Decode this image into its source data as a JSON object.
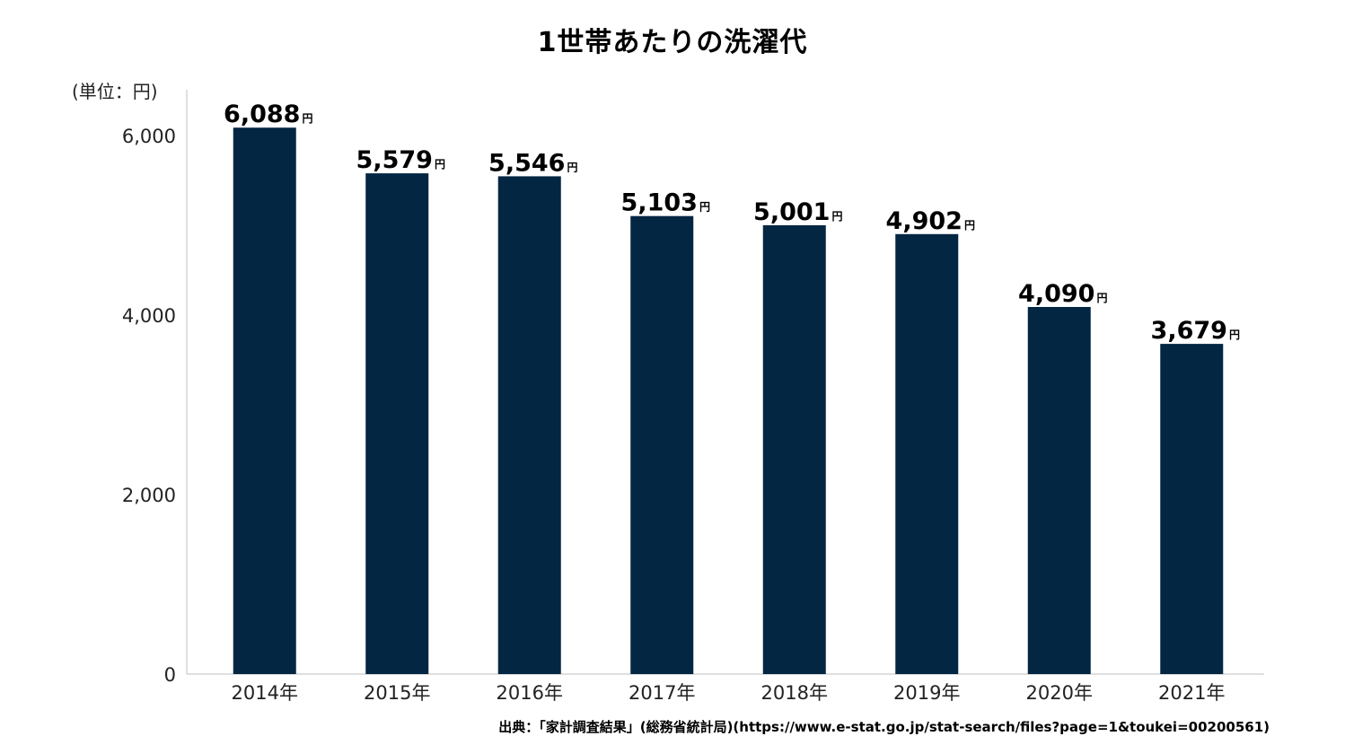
{
  "title": "1世帯あたりの洗濯代",
  "unit_label": "(単位：円)",
  "source": "出典：「家計調査結果」(総務省統計局)(https://www.e-stat.go.jp/stat-search/files?page=1&toukei=00200561)",
  "chart_data": {
    "type": "bar",
    "title": "1世帯あたりの洗濯代",
    "xlabel": "",
    "ylabel": "(単位：円)",
    "categories": [
      "2014年",
      "2015年",
      "2016年",
      "2017年",
      "2018年",
      "2019年",
      "2020年",
      "2021年"
    ],
    "values": [
      6088,
      5579,
      5546,
      5103,
      5001,
      4902,
      4090,
      3679
    ],
    "data_labels": [
      "6,088",
      "5,579",
      "5,546",
      "5,103",
      "5,001",
      "4,902",
      "4,090",
      "3,679"
    ],
    "data_label_unit": "円",
    "y_ticks": [
      0,
      2000,
      4000,
      6000
    ],
    "y_tick_labels": [
      "0",
      "2,000",
      "4,000",
      "6,000"
    ],
    "ylim": [
      0,
      6500
    ],
    "grid": false,
    "bar_color": "#032642"
  }
}
